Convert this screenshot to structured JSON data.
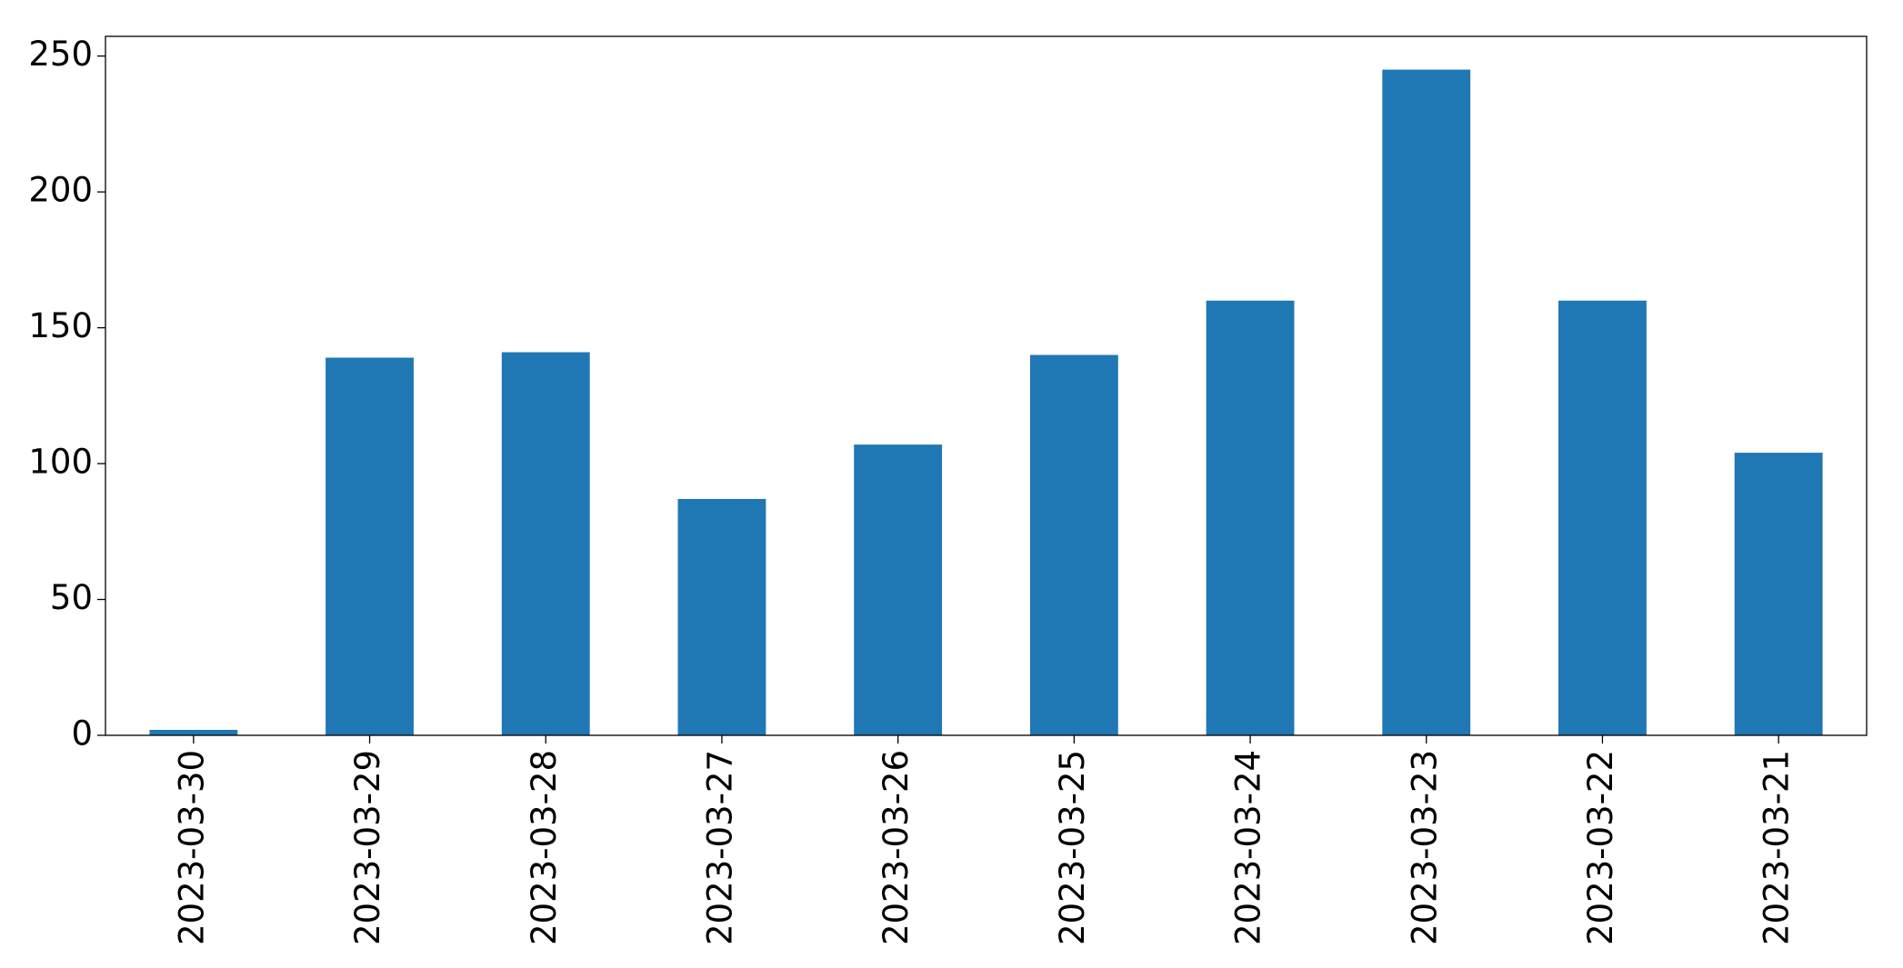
{
  "chart_data": {
    "type": "bar",
    "categories": [
      "2023-03-30",
      "2023-03-29",
      "2023-03-28",
      "2023-03-27",
      "2023-03-26",
      "2023-03-25",
      "2023-03-24",
      "2023-03-23",
      "2023-03-22",
      "2023-03-21"
    ],
    "values": [
      2,
      139,
      141,
      87,
      107,
      140,
      160,
      245,
      160,
      104
    ],
    "color": "#1f77b4",
    "ylim": [
      0,
      257.25
    ],
    "yticks": [
      0,
      50,
      100,
      150,
      200,
      250
    ],
    "grid": false
  }
}
